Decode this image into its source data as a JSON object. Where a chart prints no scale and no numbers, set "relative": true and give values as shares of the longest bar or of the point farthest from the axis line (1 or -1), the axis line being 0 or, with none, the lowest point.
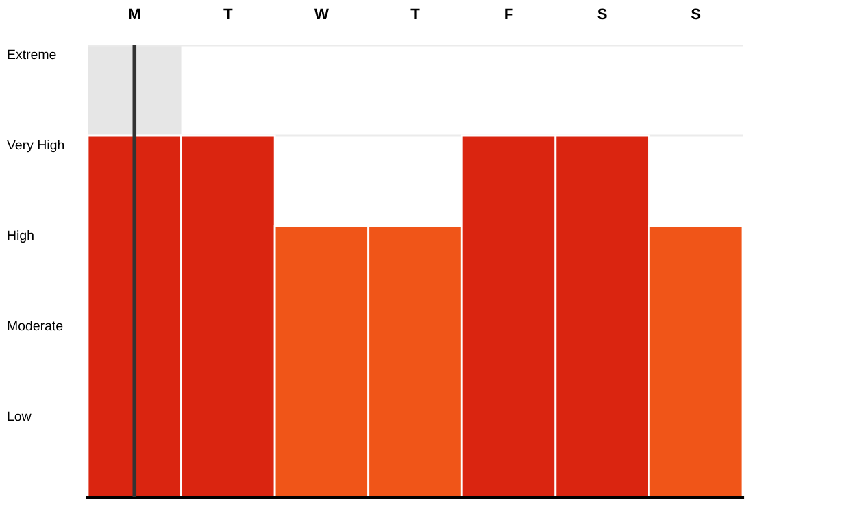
{
  "chart_data": {
    "type": "bar",
    "categories": [
      "M",
      "T",
      "W",
      "T",
      "F",
      "S",
      "S"
    ],
    "values": [
      1,
      1,
      0.75,
      0.75,
      1,
      1,
      0.75
    ],
    "relative": true,
    "annotations": [
      "Low",
      "Moderate",
      "High",
      "Very High",
      "Extreme"
    ],
    "colors": [
      "#da2510",
      "#da2510",
      "#f05518",
      "#f05518",
      "#da2510",
      "#da2510",
      "#f05518"
    ],
    "grid": "y",
    "bands": [
      {
        "axis": "x",
        "from": "M",
        "to": "M",
        "color": "#e6e6e6"
      }
    ],
    "ref_lines": [
      {
        "axis": "x",
        "value": "M",
        "color": "#333333"
      }
    ]
  }
}
